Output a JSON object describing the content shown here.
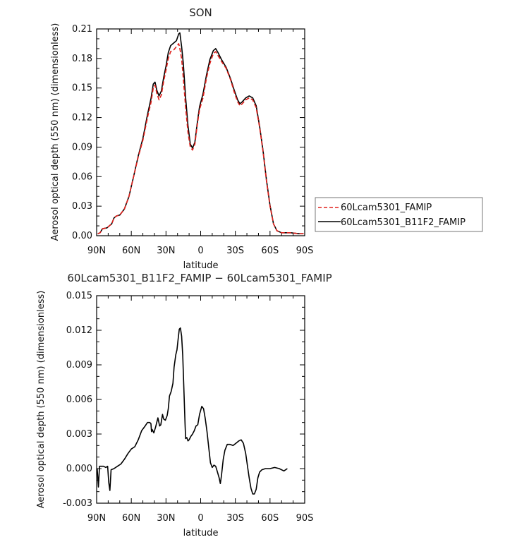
{
  "chart_data": [
    {
      "type": "line",
      "title": "SON",
      "xlabel": "latitude",
      "ylabel": "Aerosol optical depth (550 nm) (dimensionless)",
      "xlim": [
        90,
        -90
      ],
      "ylim": [
        0,
        0.21
      ],
      "x_ticks": [
        90,
        60,
        30,
        0,
        -30,
        -60,
        -90
      ],
      "x_tick_labels": [
        "90N",
        "60N",
        "30N",
        "0",
        "30S",
        "60S",
        "90S"
      ],
      "y_ticks": [
        0,
        0.03,
        0.06,
        0.09,
        0.12,
        0.15,
        0.18,
        0.21
      ],
      "y_tick_labels": [
        "0.00",
        "0.03",
        "0.06",
        "0.09",
        "0.12",
        "0.15",
        "0.18",
        "0.21"
      ],
      "legend_position": "right",
      "series": [
        {
          "name": "60Lcam5301_FAMIP",
          "color": "#e0201b",
          "dash": "dashed",
          "points": [
            [
              89,
              0.002
            ],
            [
              87,
              0.003
            ],
            [
              85,
              0.007
            ],
            [
              81,
              0.008
            ],
            [
              79,
              0.01
            ],
            [
              77,
              0.012
            ],
            [
              75,
              0.018
            ],
            [
              73,
              0.02
            ],
            [
              70,
              0.021
            ],
            [
              66,
              0.027
            ],
            [
              62,
              0.04
            ],
            [
              58,
              0.06
            ],
            [
              54,
              0.08
            ],
            [
              50,
              0.097
            ],
            [
              46,
              0.12
            ],
            [
              43,
              0.135
            ],
            [
              41,
              0.15
            ],
            [
              39.5,
              0.153
            ],
            [
              38,
              0.145
            ],
            [
              36,
              0.138
            ],
            [
              34,
              0.143
            ],
            [
              32,
              0.157
            ],
            [
              30,
              0.168
            ],
            [
              28,
              0.18
            ],
            [
              26,
              0.187
            ],
            [
              23,
              0.189
            ],
            [
              21,
              0.192
            ],
            [
              19,
              0.195
            ],
            [
              18,
              0.19
            ],
            [
              16.5,
              0.18
            ],
            [
              15,
              0.16
            ],
            [
              13,
              0.13
            ],
            [
              11,
              0.105
            ],
            [
              9,
              0.09
            ],
            [
              7,
              0.087
            ],
            [
              5,
              0.093
            ],
            [
              3,
              0.112
            ],
            [
              1,
              0.128
            ],
            [
              -2,
              0.14
            ],
            [
              -5,
              0.16
            ],
            [
              -8,
              0.175
            ],
            [
              -11,
              0.185
            ],
            [
              -13,
              0.187
            ],
            [
              -15,
              0.183
            ],
            [
              -18,
              0.177
            ],
            [
              -22,
              0.17
            ],
            [
              -26,
              0.158
            ],
            [
              -29,
              0.146
            ],
            [
              -32,
              0.136
            ],
            [
              -34,
              0.132
            ],
            [
              -36,
              0.134
            ],
            [
              -39,
              0.138
            ],
            [
              -42,
              0.14
            ],
            [
              -45,
              0.138
            ],
            [
              -48,
              0.13
            ],
            [
              -51,
              0.11
            ],
            [
              -54,
              0.085
            ],
            [
              -57,
              0.055
            ],
            [
              -60,
              0.03
            ],
            [
              -63,
              0.012
            ],
            [
              -66,
              0.005
            ],
            [
              -70,
              0.003
            ],
            [
              -78,
              0.003
            ],
            [
              -85,
              0.002
            ],
            [
              -89,
              0.002
            ]
          ]
        },
        {
          "name": "60Lcam5301_B11F2_FAMIP",
          "color": "#000000",
          "dash": "solid",
          "points": [
            [
              89,
              0.002
            ],
            [
              87,
              0.003
            ],
            [
              85,
              0.007
            ],
            [
              81,
              0.008
            ],
            [
              79,
              0.01
            ],
            [
              77,
              0.012
            ],
            [
              75,
              0.018
            ],
            [
              73,
              0.02
            ],
            [
              70,
              0.021
            ],
            [
              66,
              0.027
            ],
            [
              62,
              0.04
            ],
            [
              58,
              0.06
            ],
            [
              54,
              0.081
            ],
            [
              50,
              0.099
            ],
            [
              46,
              0.123
            ],
            [
              43,
              0.139
            ],
            [
              41,
              0.154
            ],
            [
              39.5,
              0.156
            ],
            [
              38,
              0.148
            ],
            [
              36,
              0.142
            ],
            [
              34,
              0.147
            ],
            [
              32,
              0.161
            ],
            [
              30,
              0.172
            ],
            [
              28,
              0.186
            ],
            [
              26,
              0.193
            ],
            [
              23,
              0.196
            ],
            [
              21,
              0.198
            ],
            [
              19,
              0.205
            ],
            [
              18,
              0.206
            ],
            [
              16.5,
              0.192
            ],
            [
              15,
              0.175
            ],
            [
              13,
              0.14
            ],
            [
              11,
              0.112
            ],
            [
              9,
              0.093
            ],
            [
              7,
              0.089
            ],
            [
              5,
              0.095
            ],
            [
              3,
              0.114
            ],
            [
              1,
              0.131
            ],
            [
              -2,
              0.144
            ],
            [
              -5,
              0.163
            ],
            [
              -8,
              0.179
            ],
            [
              -11,
              0.188
            ],
            [
              -13,
              0.19
            ],
            [
              -15,
              0.186
            ],
            [
              -18,
              0.179
            ],
            [
              -22,
              0.171
            ],
            [
              -26,
              0.159
            ],
            [
              -29,
              0.148
            ],
            [
              -32,
              0.138
            ],
            [
              -34,
              0.134
            ],
            [
              -36,
              0.136
            ],
            [
              -39,
              0.14
            ],
            [
              -42,
              0.142
            ],
            [
              -45,
              0.14
            ],
            [
              -48,
              0.132
            ],
            [
              -51,
              0.111
            ],
            [
              -54,
              0.086
            ],
            [
              -57,
              0.056
            ],
            [
              -60,
              0.031
            ],
            [
              -63,
              0.012
            ],
            [
              -66,
              0.005
            ],
            [
              -70,
              0.003
            ],
            [
              -78,
              0.003
            ],
            [
              -85,
              0.002
            ],
            [
              -89,
              0.002
            ]
          ]
        }
      ]
    },
    {
      "type": "line",
      "title": "60Lcam5301_B11F2_FAMIP − 60Lcam5301_FAMIP",
      "xlabel": "latitude",
      "ylabel": "Aerosol optical depth (550 nm) (dimensionless)",
      "xlim": [
        90,
        -90
      ],
      "ylim": [
        -0.003,
        0.015
      ],
      "x_ticks": [
        90,
        60,
        30,
        0,
        -30,
        -60,
        -90
      ],
      "x_tick_labels": [
        "90N",
        "60N",
        "30N",
        "0",
        "30S",
        "60S",
        "90S"
      ],
      "y_ticks": [
        -0.003,
        0,
        0.003,
        0.006,
        0.009,
        0.012,
        0.015
      ],
      "y_tick_labels": [
        "-0.003",
        "0.000",
        "0.003",
        "0.006",
        "0.009",
        "0.012",
        "0.015"
      ],
      "series": [
        {
          "color": "#000000",
          "dash": "solid",
          "points": [
            [
              89.5,
              0.0
            ],
            [
              88.5,
              -0.0016
            ],
            [
              87.5,
              0.0002
            ],
            [
              86,
              0.0002
            ],
            [
              84,
              0.0002
            ],
            [
              82,
              0.0001
            ],
            [
              80.5,
              0.0002
            ],
            [
              79.5,
              -0.0012
            ],
            [
              78.5,
              -0.0019
            ],
            [
              77.5,
              -0.0001
            ],
            [
              75,
              0.0
            ],
            [
              72,
              0.0002
            ],
            [
              69,
              0.0004
            ],
            [
              66,
              0.0008
            ],
            [
              63,
              0.0013
            ],
            [
              60,
              0.0017
            ],
            [
              57,
              0.0019
            ],
            [
              54,
              0.0025
            ],
            [
              51,
              0.0033
            ],
            [
              48,
              0.0037
            ],
            [
              46,
              0.004
            ],
            [
              44,
              0.004
            ],
            [
              43,
              0.0039
            ],
            [
              42.5,
              0.0032
            ],
            [
              42,
              0.0034
            ],
            [
              40.5,
              0.0031
            ],
            [
              39,
              0.0036
            ],
            [
              37,
              0.0044
            ],
            [
              35.5,
              0.0037
            ],
            [
              34.5,
              0.0038
            ],
            [
              33,
              0.0047
            ],
            [
              32,
              0.0043
            ],
            [
              30.5,
              0.0042
            ],
            [
              29,
              0.0046
            ],
            [
              28,
              0.0052
            ],
            [
              27,
              0.0063
            ],
            [
              25.5,
              0.0067
            ],
            [
              24,
              0.0074
            ],
            [
              23,
              0.0088
            ],
            [
              21.5,
              0.0099
            ],
            [
              20.5,
              0.0103
            ],
            [
              19.5,
              0.0112
            ],
            [
              18.5,
              0.0121
            ],
            [
              17.5,
              0.0122
            ],
            [
              16.5,
              0.0115
            ],
            [
              15.5,
              0.0098
            ],
            [
              14.5,
              0.0069
            ],
            [
              13.5,
              0.0038
            ],
            [
              13,
              0.0026
            ],
            [
              12,
              0.0027
            ],
            [
              11,
              0.0024
            ],
            [
              10,
              0.0025
            ],
            [
              8.5,
              0.0028
            ],
            [
              7,
              0.003
            ],
            [
              5.5,
              0.0033
            ],
            [
              4,
              0.0037
            ],
            [
              2.5,
              0.0038
            ],
            [
              1,
              0.0047
            ],
            [
              -1,
              0.0054
            ],
            [
              -2.5,
              0.0052
            ],
            [
              -4,
              0.0043
            ],
            [
              -5.5,
              0.0032
            ],
            [
              -7,
              0.0018
            ],
            [
              -8.5,
              0.0005
            ],
            [
              -10,
              0.0001
            ],
            [
              -11.5,
              0.0003
            ],
            [
              -13,
              0.0002
            ],
            [
              -14.5,
              -0.0003
            ],
            [
              -16,
              -0.0008
            ],
            [
              -17,
              -0.0013
            ],
            [
              -18,
              -0.0006
            ],
            [
              -19.5,
              0.0008
            ],
            [
              -21,
              0.0016
            ],
            [
              -23,
              0.0021
            ],
            [
              -25.5,
              0.0021
            ],
            [
              -28,
              0.002
            ],
            [
              -30.5,
              0.0022
            ],
            [
              -33,
              0.0024
            ],
            [
              -35,
              0.0025
            ],
            [
              -37,
              0.0022
            ],
            [
              -39,
              0.0013
            ],
            [
              -40.5,
              0.0002
            ],
            [
              -42,
              -0.0008
            ],
            [
              -43.5,
              -0.0017
            ],
            [
              -45,
              -0.0022
            ],
            [
              -46.5,
              -0.0022
            ],
            [
              -48,
              -0.0018
            ],
            [
              -49.5,
              -0.0008
            ],
            [
              -51,
              -0.0003
            ],
            [
              -53,
              -0.0001
            ],
            [
              -56,
              0.0
            ],
            [
              -60,
              0.0
            ],
            [
              -64,
              0.0001
            ],
            [
              -68,
              0.0
            ],
            [
              -72,
              -0.0002
            ],
            [
              -75,
              0.0
            ]
          ]
        }
      ]
    }
  ]
}
